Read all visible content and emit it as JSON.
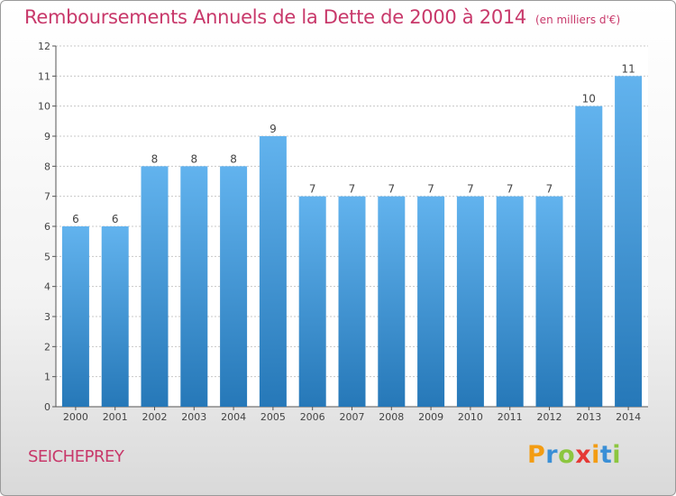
{
  "header": {
    "title": "Remboursements Annuels de la Dette de 2000 à 2014",
    "unit": "(en milliers d'€)"
  },
  "footer": {
    "city": "SEICHEPREY",
    "logo_letters": [
      "P",
      "r",
      "o",
      "x",
      "i",
      "t",
      "i"
    ],
    "logo_colors": [
      "#f39c12",
      "#3a8fd6",
      "#8cc63f",
      "#e53935",
      "#f39c12",
      "#3a8fd6",
      "#8cc63f"
    ]
  },
  "colors": {
    "title": "#c8386a",
    "bar_light": "#62b3ee",
    "bar_dark": "#2678b8",
    "grid": "#c8c8c8"
  },
  "chart_data": {
    "type": "bar",
    "title": "Remboursements Annuels de la Dette de 2000 à 2014",
    "xlabel": "",
    "ylabel": "",
    "ylim": [
      0,
      12
    ],
    "yticks": [
      0,
      1,
      2,
      3,
      4,
      5,
      6,
      7,
      8,
      9,
      10,
      11,
      12
    ],
    "grid": true,
    "categories": [
      "2000",
      "2001",
      "2002",
      "2003",
      "2004",
      "2005",
      "2006",
      "2007",
      "2008",
      "2009",
      "2010",
      "2011",
      "2012",
      "2013",
      "2014"
    ],
    "values": [
      6,
      6,
      8,
      8,
      8,
      9,
      7,
      7,
      7,
      7,
      7,
      7,
      7,
      10,
      11
    ]
  }
}
